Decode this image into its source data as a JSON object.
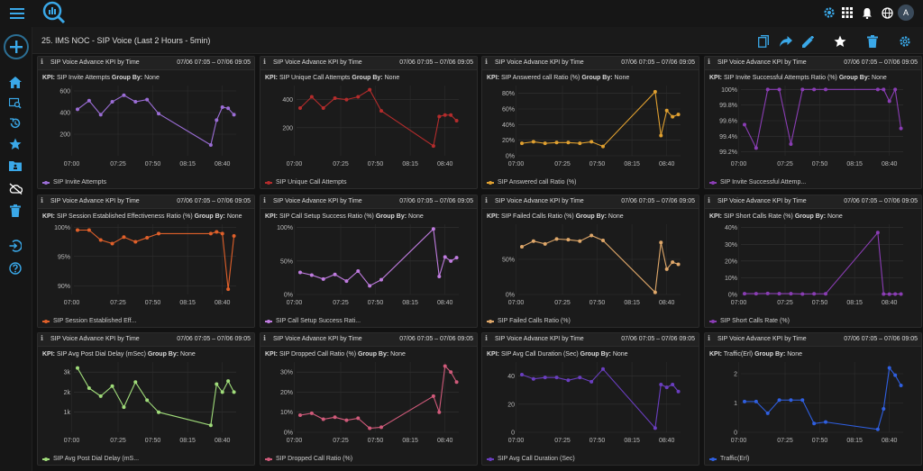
{
  "header": {
    "page_title": "25. IMS NOC - SIP Voice (Last 2 Hours - 5min)",
    "avatar_initial": "A"
  },
  "colors": {
    "accent": "#2c9ad7",
    "background": "#121212",
    "panel": "#1b1b1b",
    "grid": "#333333"
  },
  "panels": [
    {
      "title": "SIP Voice Advance KPI by Time",
      "range": "07/06 07:05 – 07/06 09:05",
      "kpi_label": "KPI:",
      "kpi_name": "SIP Invite Attempts",
      "group_label": "Group By:",
      "group_value": "None",
      "legend": "SIP Invite Attempts",
      "color": "#9b6dd6",
      "chart_data": {
        "type": "line",
        "x": [
          "07:05",
          "07:10",
          "07:15",
          "07:20",
          "07:25",
          "07:30",
          "07:35",
          "07:40",
          "08:40",
          "08:45",
          "08:50",
          "08:55",
          "09:00"
        ],
        "values": [
          430,
          510,
          380,
          500,
          560,
          500,
          520,
          390,
          100,
          330,
          450,
          440,
          380
        ],
        "ylim": [
          0,
          650
        ],
        "yticks": [
          200,
          400,
          600
        ],
        "ytick_labels": [
          "200",
          "400",
          "600"
        ],
        "xticks": [
          0,
          4,
          7,
          10,
          13
        ],
        "xtick_labels": [
          "07:00",
          "07:25",
          "07:50",
          "08:15",
          "08:40"
        ]
      }
    },
    {
      "title": "SIP Voice Advance KPI by Time",
      "range": "07/06 07:05 – 07/06 09:05",
      "kpi_label": "KPI:",
      "kpi_name": "SIP Unique Call Attempts",
      "group_label": "Group By:",
      "group_value": "None",
      "legend": "SIP Unique Call Attempts",
      "color": "#b42c2c",
      "chart_data": {
        "type": "line",
        "x": [
          "07:05",
          "07:10",
          "07:15",
          "07:20",
          "07:25",
          "07:30",
          "07:35",
          "07:40",
          "08:40",
          "08:45",
          "08:50",
          "08:55",
          "09:00"
        ],
        "values": [
          340,
          420,
          340,
          410,
          400,
          420,
          470,
          320,
          70,
          280,
          290,
          290,
          250
        ],
        "ylim": [
          0,
          500
        ],
        "yticks": [
          200,
          400
        ],
        "ytick_labels": [
          "200",
          "400"
        ],
        "xticks": [
          0,
          4,
          7,
          10,
          13
        ],
        "xtick_labels": [
          "07:00",
          "07:25",
          "07:50",
          "08:15",
          "08:40"
        ]
      }
    },
    {
      "title": "SIP Voice Advance KPI by Time",
      "range": "07/06 07:05 – 07/06 09:05",
      "kpi_label": "KPI:",
      "kpi_name": "SIP Answered call Ratio (%)",
      "group_label": "Group By:",
      "group_value": "None",
      "legend": "SIP Answered call Ratio (%)",
      "color": "#e0a030",
      "chart_data": {
        "type": "line",
        "x": [
          "07:05",
          "07:10",
          "07:15",
          "07:20",
          "07:25",
          "07:30",
          "07:35",
          "07:40",
          "08:40",
          "08:45",
          "08:50",
          "08:55",
          "09:00"
        ],
        "values": [
          16,
          18,
          16,
          17,
          17,
          16,
          18,
          12,
          82,
          26,
          58,
          50,
          53
        ],
        "ylim": [
          0,
          90
        ],
        "yticks": [
          0,
          20,
          40,
          60,
          80
        ],
        "ytick_labels": [
          "0%",
          "20%",
          "40%",
          "60%",
          "80%"
        ],
        "xticks": [
          0,
          4,
          7,
          10,
          13
        ],
        "xtick_labels": [
          "07:00",
          "07:25",
          "07:50",
          "08:15",
          "08:40"
        ]
      }
    },
    {
      "title": "SIP Voice Advance KPI by Time",
      "range": "07/06 07:05 – 07/06 09:05",
      "kpi_label": "KPI:",
      "kpi_name": "SIP Invite Successful Attempts Ratio (%)",
      "group_label": "Group By:",
      "group_value": "None",
      "legend": "SIP Invite Successful Attemp...",
      "color": "#8a3db4",
      "chart_data": {
        "type": "line",
        "x": [
          "07:05",
          "07:10",
          "07:15",
          "07:20",
          "07:25",
          "07:30",
          "07:35",
          "07:40",
          "08:40",
          "08:45",
          "08:50",
          "08:55",
          "09:00"
        ],
        "values": [
          99.55,
          99.25,
          100,
          100,
          99.3,
          100,
          100,
          100,
          100,
          100,
          99.85,
          100,
          99.5
        ],
        "ylim": [
          99.15,
          100.05
        ],
        "yticks": [
          99.2,
          99.4,
          99.6,
          99.8,
          100.0
        ],
        "ytick_labels": [
          "99.2%",
          "99.4%",
          "99.6%",
          "99.8%",
          "100%"
        ],
        "xticks": [
          0,
          4,
          7,
          10,
          13
        ],
        "xtick_labels": [
          "07:00",
          "07:25",
          "07:50",
          "08:15",
          "08:40"
        ]
      }
    },
    {
      "title": "SIP Voice Advance KPI by Time",
      "range": "07/06 07:05 – 07/06 09:05",
      "kpi_label": "KPI:",
      "kpi_name": "SIP Session Established Effectiveness Ratio (%)",
      "group_label": "Group By:",
      "group_value": "None",
      "legend": "SIP Session Established Eff...",
      "color": "#e0602a",
      "chart_data": {
        "type": "line",
        "x": [
          "07:05",
          "07:10",
          "07:15",
          "07:20",
          "07:25",
          "07:30",
          "07:35",
          "07:40",
          "08:40",
          "08:45",
          "08:50",
          "08:55",
          "09:00"
        ],
        "values": [
          99.5,
          99.5,
          97.8,
          97.2,
          98.3,
          97.5,
          98.2,
          98.9,
          98.9,
          99.2,
          98.9,
          89.4,
          98.5
        ],
        "ylim": [
          88.5,
          100.5
        ],
        "yticks": [
          90,
          95,
          100
        ],
        "ytick_labels": [
          "90%",
          "95%",
          "100%"
        ],
        "xticks": [
          0,
          4,
          7,
          10,
          13
        ],
        "xtick_labels": [
          "07:00",
          "07:25",
          "07:50",
          "08:15",
          "08:40"
        ]
      }
    },
    {
      "title": "SIP Voice Advance KPI by Time",
      "range": "07/06 07:05 – 07/06 09:05",
      "kpi_label": "KPI:",
      "kpi_name": "SIP Call Setup Success Ratio (%)",
      "group_label": "Group By:",
      "group_value": "None",
      "legend": "SIP Call Setup Success Rati...",
      "color": "#c07ce0",
      "chart_data": {
        "type": "line",
        "x": [
          "07:05",
          "07:10",
          "07:15",
          "07:20",
          "07:25",
          "07:30",
          "07:35",
          "07:40",
          "08:40",
          "08:45",
          "08:50",
          "08:55",
          "09:00"
        ],
        "values": [
          33,
          29,
          23,
          30,
          20,
          35,
          13,
          22,
          98,
          27,
          56,
          50,
          55
        ],
        "ylim": [
          0,
          105
        ],
        "yticks": [
          0,
          50,
          100
        ],
        "ytick_labels": [
          "0%",
          "50%",
          "100%"
        ],
        "xticks": [
          0,
          4,
          7,
          10,
          13
        ],
        "xtick_labels": [
          "07:00",
          "07:25",
          "07:50",
          "08:15",
          "08:40"
        ]
      }
    },
    {
      "title": "SIP Voice Advance KPI by Time",
      "range": "07/06 07:05 – 07/06 09:05",
      "kpi_label": "KPI:",
      "kpi_name": "SIP Failed Calls Ratio (%)",
      "group_label": "Group By:",
      "group_value": "None",
      "legend": "SIP Failed Calls Ratio (%)",
      "color": "#e0a86a",
      "chart_data": {
        "type": "line",
        "x": [
          "07:05",
          "07:10",
          "07:15",
          "07:20",
          "07:25",
          "07:30",
          "07:35",
          "07:40",
          "08:40",
          "08:45",
          "08:50",
          "08:55",
          "09:00"
        ],
        "values": [
          68,
          76,
          72,
          79,
          78,
          76,
          84,
          77,
          3,
          74,
          36,
          46,
          43
        ],
        "ylim": [
          0,
          100
        ],
        "yticks": [
          0,
          50
        ],
        "ytick_labels": [
          "0%",
          "50%"
        ],
        "xticks": [
          0,
          4,
          7,
          10,
          13
        ],
        "xtick_labels": [
          "07:00",
          "07:25",
          "07:50",
          "08:15",
          "08:40"
        ]
      }
    },
    {
      "title": "SIP Voice Advance KPI by Time",
      "range": "07/06 07:05 – 07/06 09:05",
      "kpi_label": "KPI:",
      "kpi_name": "SIP Short Calls Rate (%)",
      "group_label": "Group By:",
      "group_value": "None",
      "legend": "SIP Short Calls Rate (%)",
      "color": "#8a3db4",
      "chart_data": {
        "type": "line",
        "x": [
          "07:05",
          "07:10",
          "07:15",
          "07:20",
          "07:25",
          "07:30",
          "07:35",
          "07:40",
          "08:40",
          "08:45",
          "08:50",
          "08:55",
          "09:00"
        ],
        "values": [
          0.5,
          0.5,
          0.6,
          0.5,
          0.5,
          0.3,
          0.4,
          0.4,
          37,
          0.3,
          0.2,
          0.3,
          0.3
        ],
        "ylim": [
          0,
          42
        ],
        "yticks": [
          0,
          10,
          20,
          30,
          40
        ],
        "ytick_labels": [
          "0%",
          "10%",
          "20%",
          "30%",
          "40%"
        ],
        "xticks": [
          0,
          4,
          7,
          10,
          13
        ],
        "xtick_labels": [
          "07:00",
          "07:25",
          "07:50",
          "08:15",
          "08:40"
        ]
      }
    },
    {
      "title": "SIP Voice Advance KPI by Time",
      "range": "07/06 07:05 – 07/06 09:05",
      "kpi_label": "KPI:",
      "kpi_name": "SIP Avg Post Dial Delay (mSec)",
      "group_label": "Group By:",
      "group_value": "None",
      "legend": "SIP Avg Post Dial Delay (mS...",
      "color": "#a0dc7a",
      "chart_data": {
        "type": "line",
        "x": [
          "07:05",
          "07:10",
          "07:15",
          "07:20",
          "07:25",
          "07:30",
          "07:35",
          "07:40",
          "08:40",
          "08:45",
          "08:50",
          "08:55",
          "09:00"
        ],
        "values": [
          3200,
          2200,
          1800,
          2300,
          1250,
          2500,
          1600,
          1000,
          350,
          2400,
          2000,
          2550,
          2000
        ],
        "ylim": [
          0,
          3500
        ],
        "yticks": [
          1000,
          2000,
          3000
        ],
        "ytick_labels": [
          "1k",
          "2k",
          "3k"
        ],
        "xticks": [
          0,
          4,
          7,
          10,
          13
        ],
        "xtick_labels": [
          "07:00",
          "07:25",
          "07:50",
          "08:15",
          "08:40"
        ]
      }
    },
    {
      "title": "SIP Voice Advance KPI by Time",
      "range": "07/06 07:05 – 07/06 09:05",
      "kpi_label": "KPI:",
      "kpi_name": "SIP Dropped Call Ratio (%)",
      "group_label": "Group By:",
      "group_value": "None",
      "legend": "SIP Dropped Call Ratio (%)",
      "color": "#d05a7a",
      "chart_data": {
        "type": "line",
        "x": [
          "07:05",
          "07:10",
          "07:15",
          "07:20",
          "07:25",
          "07:30",
          "07:35",
          "07:40",
          "08:40",
          "08:45",
          "08:50",
          "08:55",
          "09:00"
        ],
        "values": [
          8.5,
          9.5,
          6.5,
          7.5,
          6,
          7,
          2,
          2.5,
          18,
          10,
          33,
          30,
          25
        ],
        "ylim": [
          0,
          35
        ],
        "yticks": [
          0,
          10,
          20,
          30
        ],
        "ytick_labels": [
          "0%",
          "10%",
          "20%",
          "30%"
        ],
        "xticks": [
          0,
          4,
          7,
          10,
          13
        ],
        "xtick_labels": [
          "07:00",
          "07:25",
          "07:50",
          "08:15",
          "08:40"
        ]
      }
    },
    {
      "title": "SIP Voice Advance KPI by Time",
      "range": "07/06 07:05 – 07/06 09:05",
      "kpi_label": "KPI:",
      "kpi_name": "SIP Avg Call Duration (Sec)",
      "group_label": "Group By:",
      "group_value": "None",
      "legend": "SIP Avg Call Duration (Sec)",
      "color": "#6a3ec0",
      "chart_data": {
        "type": "line",
        "x": [
          "07:05",
          "07:10",
          "07:15",
          "07:20",
          "07:25",
          "07:30",
          "07:35",
          "07:40",
          "08:40",
          "08:45",
          "08:50",
          "08:55",
          "09:00"
        ],
        "values": [
          41,
          38,
          39,
          39,
          37,
          39,
          36,
          45,
          3,
          34,
          32,
          34,
          29
        ],
        "ylim": [
          0,
          50
        ],
        "yticks": [
          0,
          20,
          40
        ],
        "ytick_labels": [
          "0",
          "20",
          "40"
        ],
        "xticks": [
          0,
          4,
          7,
          10,
          13
        ],
        "xtick_labels": [
          "07:00",
          "07:25",
          "07:50",
          "08:15",
          "08:40"
        ]
      }
    },
    {
      "title": "SIP Voice Advance KPI by Time",
      "range": "07/06 07:05 – 07/06 09:05",
      "kpi_label": "KPI:",
      "kpi_name": "Traffic(Erl)",
      "group_label": "Group By:",
      "group_value": "None",
      "legend": "Traffic(Erl)",
      "color": "#2f5fe0",
      "chart_data": {
        "type": "line",
        "x": [
          "07:05",
          "07:10",
          "07:15",
          "07:20",
          "07:25",
          "07:30",
          "07:35",
          "07:40",
          "08:40",
          "08:45",
          "08:50",
          "08:55",
          "09:00"
        ],
        "values": [
          1.05,
          1.05,
          0.65,
          1.1,
          1.1,
          1.1,
          0.3,
          0.35,
          0.1,
          0.8,
          2.2,
          1.95,
          1.6
        ],
        "ylim": [
          0,
          2.4
        ],
        "yticks": [
          0,
          1,
          2
        ],
        "ytick_labels": [
          "0",
          "1",
          "2"
        ],
        "xticks": [
          0,
          4,
          7,
          10,
          13
        ],
        "xtick_labels": [
          "07:00",
          "07:25",
          "07:50",
          "08:15",
          "08:40"
        ]
      }
    }
  ]
}
